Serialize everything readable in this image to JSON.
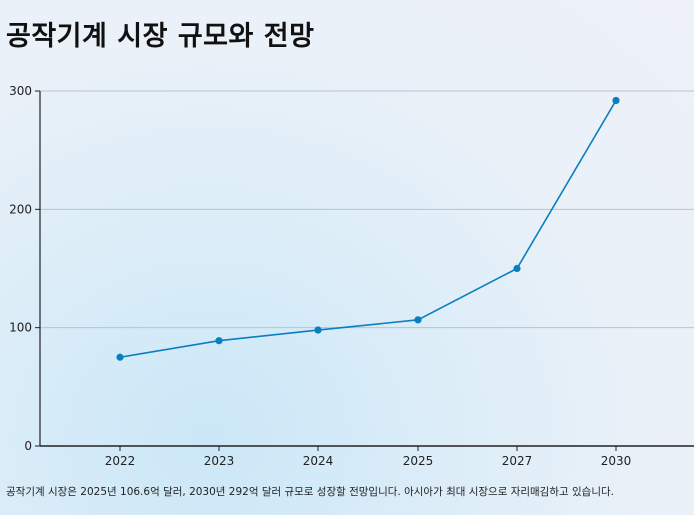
{
  "title": "공작기계 시장 규모와 전망",
  "caption": "공작기계 시장은 2025년 106.6억 달러, 2030년 292억 달러 규모로 성장할 전망입니다. 아시아가 최대 시장으로 자리매김하고 있습니다.",
  "colors": {
    "line": "#0a7fbf",
    "grid": "#b9c3cf",
    "axis": "#222222"
  },
  "chart_data": {
    "type": "line",
    "title": "공작기계 시장 규모와 전망",
    "categories": [
      "2022",
      "2023",
      "2024",
      "2025",
      "2027",
      "2030"
    ],
    "series": [
      {
        "values": [
          75,
          89,
          98,
          106.6,
          150,
          292
        ]
      }
    ],
    "y_ticks": [
      "0",
      "100",
      "200",
      "300"
    ],
    "ylim": [
      0,
      300
    ],
    "grid": true,
    "xlabel": "",
    "ylabel": ""
  }
}
